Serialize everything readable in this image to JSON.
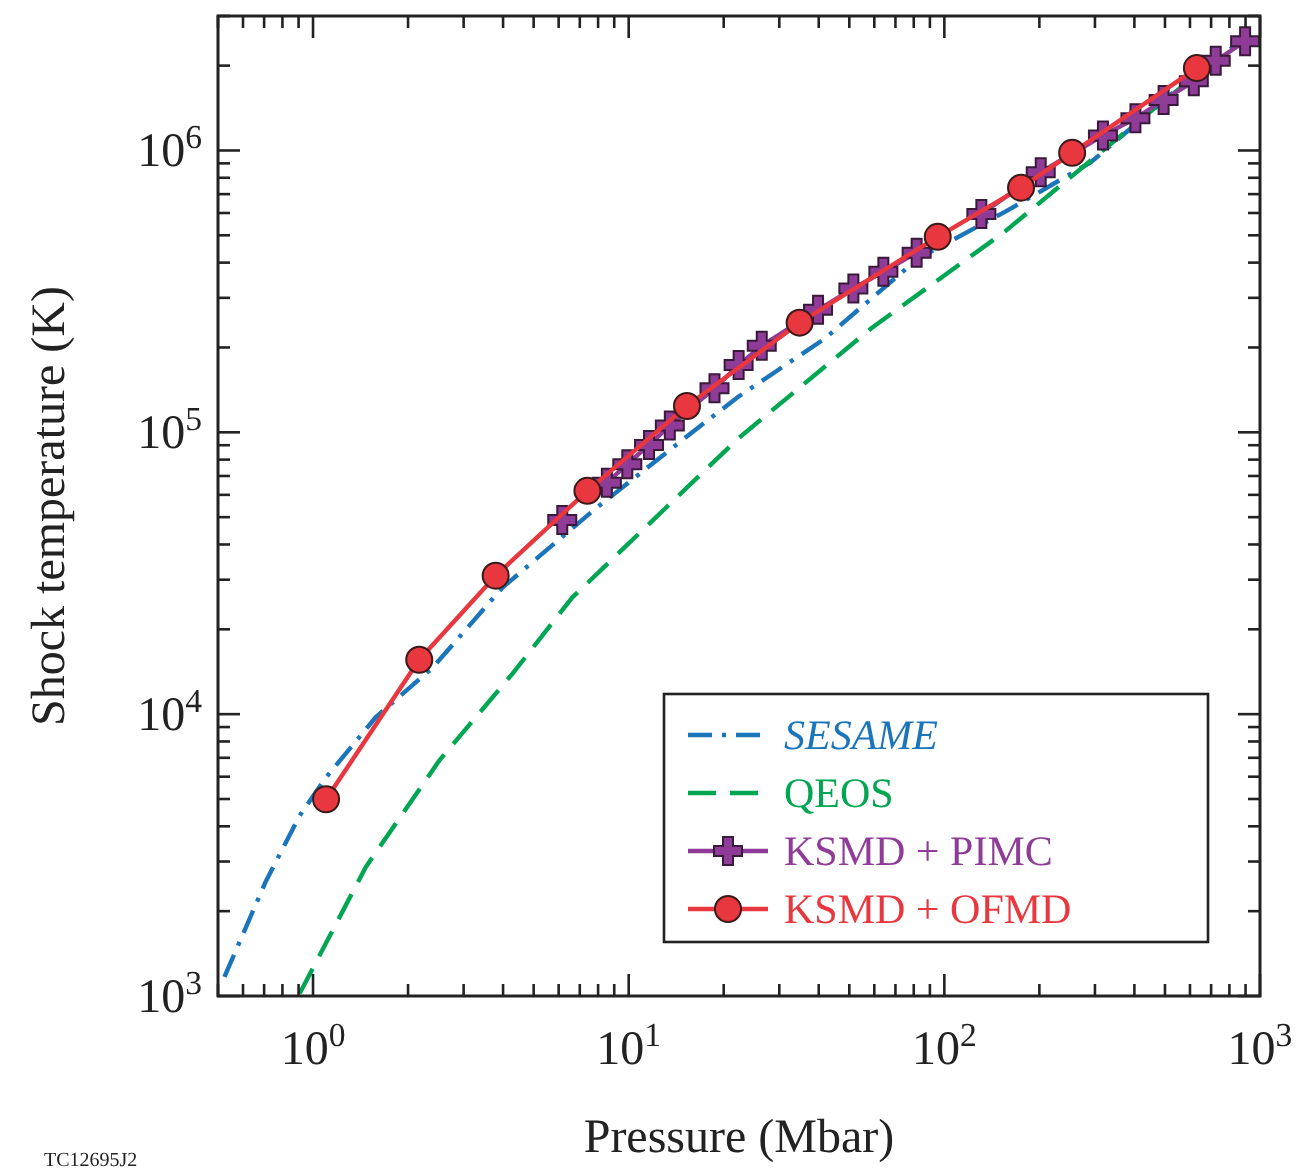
{
  "chart_data": {
    "type": "line",
    "xlabel": "Pressure (Mbar)",
    "ylabel": "Shock temperature (K)",
    "log": "xy",
    "grid": false,
    "legend": "bottom right",
    "xlim": [
      0.5,
      1000
    ],
    "ylim": [
      1000,
      3000000
    ],
    "xticks": [
      {
        "value": 0.5,
        "label": null
      },
      {
        "value": 0.6,
        "label": null
      },
      {
        "value": 0.7,
        "label": null
      },
      {
        "value": 0.8,
        "label": null
      },
      {
        "value": 0.9,
        "label": null
      },
      {
        "value": 1,
        "label": "10$^{0}$"
      },
      {
        "value": 2,
        "label": null
      },
      {
        "value": 3,
        "label": null
      },
      {
        "value": 4,
        "label": null
      },
      {
        "value": 5,
        "label": null
      },
      {
        "value": 6,
        "label": null
      },
      {
        "value": 7,
        "label": null
      },
      {
        "value": 8,
        "label": null
      },
      {
        "value": 9,
        "label": null
      },
      {
        "value": 10,
        "label": "10$^{1}$"
      },
      {
        "value": 20,
        "label": null
      },
      {
        "value": 30,
        "label": null
      },
      {
        "value": 40,
        "label": null
      },
      {
        "value": 50,
        "label": null
      },
      {
        "value": 60,
        "label": null
      },
      {
        "value": 70,
        "label": null
      },
      {
        "value": 80,
        "label": null
      },
      {
        "value": 90,
        "label": null
      },
      {
        "value": 100,
        "label": "10$^{2}$"
      },
      {
        "value": 200,
        "label": null
      },
      {
        "value": 300,
        "label": null
      },
      {
        "value": 400,
        "label": null
      },
      {
        "value": 500,
        "label": null
      },
      {
        "value": 600,
        "label": null
      },
      {
        "value": 700,
        "label": null
      },
      {
        "value": 800,
        "label": null
      },
      {
        "value": 900,
        "label": null
      },
      {
        "value": 1000,
        "label": "10$^{3}$"
      }
    ],
    "yticks": [
      {
        "value": 1000,
        "label": "10$^{3}$"
      },
      {
        "value": 2000,
        "label": null
      },
      {
        "value": 3000,
        "label": null
      },
      {
        "value": 4000,
        "label": null
      },
      {
        "value": 5000,
        "label": null
      },
      {
        "value": 6000,
        "label": null
      },
      {
        "value": 7000,
        "label": null
      },
      {
        "value": 8000,
        "label": null
      },
      {
        "value": 9000,
        "label": null
      },
      {
        "value": 10000,
        "label": "10$^{4}$"
      },
      {
        "value": 20000,
        "label": null
      },
      {
        "value": 30000,
        "label": null
      },
      {
        "value": 40000,
        "label": null
      },
      {
        "value": 50000,
        "label": null
      },
      {
        "value": 60000,
        "label": null
      },
      {
        "value": 70000,
        "label": null
      },
      {
        "value": 80000,
        "label": null
      },
      {
        "value": 90000,
        "label": null
      },
      {
        "value": 100000,
        "label": "10$^{5}$"
      },
      {
        "value": 200000,
        "label": null
      },
      {
        "value": 300000,
        "label": null
      },
      {
        "value": 400000,
        "label": null
      },
      {
        "value": 500000,
        "label": null
      },
      {
        "value": 600000,
        "label": null
      },
      {
        "value": 700000,
        "label": null
      },
      {
        "value": 800000,
        "label": null
      },
      {
        "value": 900000,
        "label": null
      },
      {
        "value": 1000000,
        "label": "10$^{6}$"
      },
      {
        "value": 2000000,
        "label": null
      },
      {
        "value": 3000000,
        "label": null
      }
    ],
    "series": [
      {
        "name": "SESAME",
        "color": "#1b75bb",
        "line_style": "dashdot",
        "marker": "none",
        "x": [
          0.524,
          0.711,
          0.907,
          1.1,
          1.58,
          2.39,
          3.98,
          7.66,
          15.5,
          22.3,
          41.8,
          82.4,
          155,
          291,
          546,
          948
        ],
        "values": [
          1170,
          2570,
          4360,
          5970,
          9750,
          14600,
          28100,
          52400,
          97900,
          134000,
          215000,
          413000,
          604000,
          908000,
          1650000,
          2620000
        ]
      },
      {
        "name": "QEOS",
        "color": "#00a651",
        "line_style": "dashed",
        "marker": "none",
        "x": [
          0.907,
          1.47,
          2.51,
          4.28,
          6.62,
          13.1,
          22.3,
          58.7,
          155,
          408,
          931
        ],
        "values": [
          1020,
          2870,
          6840,
          13900,
          25900,
          53900,
          95400,
          234000,
          514000,
          1260000,
          2620000
        ]
      },
      {
        "name": "KSMD + PIMC",
        "color": "#8e3c97",
        "line_style": "solid",
        "marker": "cross",
        "x": [
          6.16,
          7.13,
          8.53,
          9.9,
          11.6,
          13.5,
          18.7,
          22.3,
          26.4,
          39.8,
          51.5,
          64.1,
          81.7,
          101,
          131,
          202,
          318,
          403,
          495,
          617,
          724,
          897
        ],
        "values": [
          48900,
          null,
          66200,
          77100,
          90200,
          105700,
          143300,
          173200,
          202900,
          272000,
          324000,
          371000,
          434000,
          null,
          595000,
          837000,
          1130000,
          1300000,
          1510000,
          1760000,
          2080000,
          2440000
        ]
      },
      {
        "name": "KSMD + OFMD",
        "color": "#e8373e",
        "line_style": "solid",
        "marker": "circle",
        "x": [
          1.1,
          2.17,
          3.79,
          7.4,
          15.3,
          34.8,
          95.3,
          175,
          254,
          631
        ],
        "values": [
          4990,
          15600,
          31000,
          62000,
          124000,
          245000,
          494000,
          738000,
          981000,
          1960000
        ]
      }
    ],
    "annotations": [
      "TC12695J2"
    ]
  }
}
